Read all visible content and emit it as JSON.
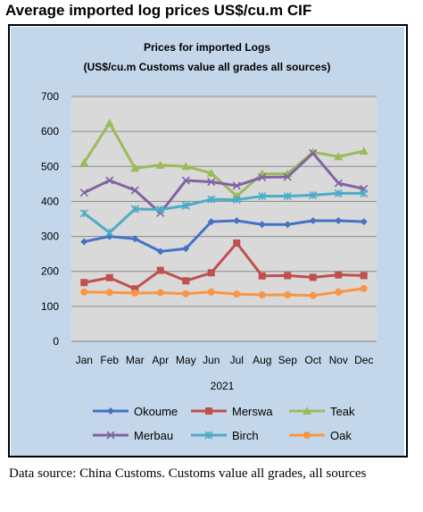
{
  "heading": "Average imported log prices US$/cu.m CIF",
  "source_note": "Data source: China Customs. Customs value all grades, all sources",
  "chart_data": {
    "type": "line",
    "title": "Prices for imported Logs",
    "subtitle": "(US$/cu.m Customs value all grades all sources)",
    "xlabel": "2021",
    "ylabel": "",
    "categories": [
      "Jan",
      "Feb",
      "Mar",
      "Apr",
      "May",
      "Jun",
      "Jul",
      "Aug",
      "Sep",
      "Oct",
      "Nov",
      "Dec"
    ],
    "ylim": [
      0,
      700
    ],
    "yticks": [
      0,
      100,
      200,
      300,
      400,
      500,
      600,
      700
    ],
    "grid": true,
    "legend_position": "bottom",
    "series": [
      {
        "name": "Okoume",
        "color": "#4472c4",
        "marker": "diamond",
        "values": [
          285,
          300,
          293,
          257,
          265,
          342,
          345,
          334,
          334,
          345,
          345,
          342
        ]
      },
      {
        "name": "Merswa",
        "color": "#c0504d",
        "marker": "square",
        "values": [
          168,
          182,
          150,
          203,
          173,
          196,
          281,
          187,
          188,
          183,
          190,
          188
        ]
      },
      {
        "name": "Teak",
        "color": "#9bbb59",
        "marker": "triangle",
        "values": [
          511,
          624,
          495,
          504,
          500,
          481,
          415,
          479,
          479,
          541,
          528,
          544
        ]
      },
      {
        "name": "Merbau",
        "color": "#8064a2",
        "marker": "x",
        "values": [
          425,
          460,
          432,
          367,
          460,
          456,
          445,
          469,
          470,
          538,
          452,
          436
        ]
      },
      {
        "name": "Birch",
        "color": "#4bacc6",
        "marker": "star",
        "values": [
          366,
          311,
          378,
          377,
          388,
          406,
          405,
          415,
          415,
          418,
          423,
          423
        ]
      },
      {
        "name": "Oak",
        "color": "#f79646",
        "marker": "circle",
        "values": [
          141,
          140,
          138,
          139,
          136,
          141,
          135,
          133,
          133,
          131,
          141,
          151
        ]
      }
    ]
  }
}
